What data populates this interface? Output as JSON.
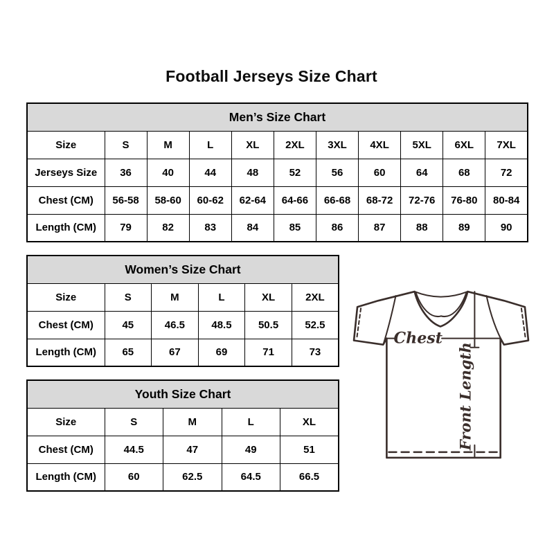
{
  "page": {
    "title": "Football Jerseys Size Chart"
  },
  "colors": {
    "table_header_bg": "#d9d9d9",
    "table_border": "#000000",
    "text": "#000000",
    "diagram_outline": "#3a2e2b"
  },
  "tables": [
    {
      "id": "mens",
      "title": "Men’s Size Chart",
      "rows": [
        [
          "Size",
          "S",
          "M",
          "L",
          "XL",
          "2XL",
          "3XL",
          "4XL",
          "5XL",
          "6XL",
          "7XL"
        ],
        [
          "Jerseys Size",
          "36",
          "40",
          "44",
          "48",
          "52",
          "56",
          "60",
          "64",
          "68",
          "72"
        ],
        [
          "Chest (CM)",
          "56-58",
          "58-60",
          "60-62",
          "62-64",
          "64-66",
          "66-68",
          "68-72",
          "72-76",
          "76-80",
          "80-84"
        ],
        [
          "Length (CM)",
          "79",
          "82",
          "83",
          "84",
          "85",
          "86",
          "87",
          "88",
          "89",
          "90"
        ]
      ],
      "label_col_width": 112
    },
    {
      "id": "womens",
      "title": "Women’s Size Chart",
      "rows": [
        [
          "Size",
          "S",
          "M",
          "L",
          "XL",
          "2XL"
        ],
        [
          "Chest (CM)",
          "45",
          "46.5",
          "48.5",
          "50.5",
          "52.5"
        ],
        [
          "Length (CM)",
          "65",
          "67",
          "69",
          "71",
          "73"
        ]
      ],
      "label_col_width": 112
    },
    {
      "id": "youth",
      "title": "Youth Size Chart",
      "rows": [
        [
          "Size",
          "S",
          "M",
          "L",
          "XL"
        ],
        [
          "Chest (CM)",
          "44.5",
          "47",
          "49",
          "51"
        ],
        [
          "Length (CM)",
          "60",
          "62.5",
          "64.5",
          "66.5"
        ]
      ],
      "label_col_width": 112
    }
  ],
  "diagram": {
    "chest_label": "Chest",
    "front_length_label": "Front Length"
  }
}
